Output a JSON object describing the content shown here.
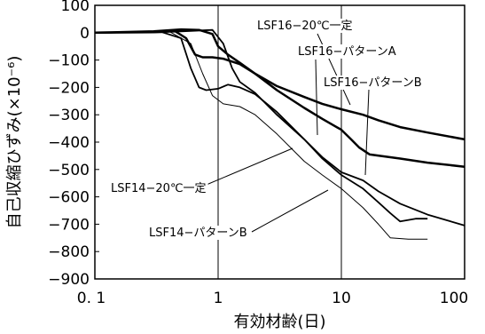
{
  "chart_data": {
    "type": "line",
    "xlabel": "有効材齢(日)",
    "ylabel": "自己収縮ひずみ(×10⁻⁶)",
    "x_scale": "log",
    "xlim": [
      0.1,
      100
    ],
    "ylim": [
      -900,
      100
    ],
    "x_ticks": [
      {
        "value": 0.1,
        "label": "0. 1"
      },
      {
        "value": 1,
        "label": "1"
      },
      {
        "value": 10,
        "label": "10"
      },
      {
        "value": 100,
        "label": "100"
      }
    ],
    "y_ticks": [
      {
        "value": 100,
        "label": "100"
      },
      {
        "value": 0,
        "label": "0"
      },
      {
        "value": -100,
        "label": "−100"
      },
      {
        "value": -200,
        "label": "−200"
      },
      {
        "value": -300,
        "label": "−300"
      },
      {
        "value": -400,
        "label": "−400"
      },
      {
        "value": -500,
        "label": "−500"
      },
      {
        "value": -600,
        "label": "−600"
      },
      {
        "value": -700,
        "label": "−700"
      },
      {
        "value": -800,
        "label": "−800"
      },
      {
        "value": -900,
        "label": "−900"
      }
    ],
    "grid": {
      "x_major": true,
      "y": false
    },
    "series": [
      {
        "name": "LSF16−20℃一定",
        "stroke": 2.5,
        "points": [
          [
            0.1,
            0
          ],
          [
            0.3,
            5
          ],
          [
            0.5,
            12
          ],
          [
            0.7,
            10
          ],
          [
            0.9,
            -5
          ],
          [
            1.0,
            -50
          ],
          [
            1.2,
            -80
          ],
          [
            1.5,
            -110
          ],
          [
            2,
            -150
          ],
          [
            3,
            -195
          ],
          [
            5,
            -235
          ],
          [
            7,
            -260
          ],
          [
            10,
            -280
          ],
          [
            15,
            -300
          ],
          [
            20,
            -320
          ],
          [
            30,
            -345
          ],
          [
            50,
            -365
          ],
          [
            100,
            -390
          ]
        ]
      },
      {
        "name": "LSF16−パターンA",
        "stroke": 2.5,
        "points": [
          [
            0.1,
            0
          ],
          [
            0.3,
            2
          ],
          [
            0.45,
            5
          ],
          [
            0.55,
            -20
          ],
          [
            0.65,
            -80
          ],
          [
            0.75,
            -90
          ],
          [
            0.9,
            -90
          ],
          [
            1.1,
            -95
          ],
          [
            1.5,
            -115
          ],
          [
            2,
            -150
          ],
          [
            3,
            -210
          ],
          [
            5,
            -275
          ],
          [
            7,
            -315
          ],
          [
            10,
            -355
          ],
          [
            12,
            -390
          ],
          [
            14,
            -420
          ],
          [
            17,
            -445
          ],
          [
            30,
            -460
          ],
          [
            50,
            -475
          ],
          [
            100,
            -490
          ]
        ]
      },
      {
        "name": "LSF16−パターンB",
        "stroke": 1.8,
        "points": [
          [
            0.1,
            0
          ],
          [
            0.35,
            2
          ],
          [
            0.5,
            -20
          ],
          [
            0.6,
            -130
          ],
          [
            0.7,
            -200
          ],
          [
            0.8,
            -210
          ],
          [
            1.0,
            -205
          ],
          [
            1.2,
            -190
          ],
          [
            1.5,
            -200
          ],
          [
            2,
            -225
          ],
          [
            3,
            -290
          ],
          [
            5,
            -390
          ],
          [
            7,
            -455
          ],
          [
            10,
            -510
          ],
          [
            15,
            -540
          ],
          [
            20,
            -580
          ],
          [
            30,
            -625
          ],
          [
            50,
            -665
          ],
          [
            100,
            -705
          ]
        ]
      },
      {
        "name": "LSF14−20℃一定",
        "stroke": 1.8,
        "points": [
          [
            0.1,
            0
          ],
          [
            0.5,
            5
          ],
          [
            0.9,
            10
          ],
          [
            1.1,
            -40
          ],
          [
            1.3,
            -130
          ],
          [
            1.5,
            -180
          ],
          [
            2,
            -220
          ],
          [
            3,
            -300
          ],
          [
            5,
            -390
          ],
          [
            7,
            -460
          ],
          [
            10,
            -520
          ],
          [
            15,
            -570
          ],
          [
            20,
            -620
          ],
          [
            25,
            -660
          ],
          [
            30,
            -690
          ],
          [
            40,
            -680
          ],
          [
            50,
            -680
          ]
        ]
      },
      {
        "name": "LSF14−パターンB",
        "stroke": 1.0,
        "points": [
          [
            0.1,
            0
          ],
          [
            0.4,
            5
          ],
          [
            0.6,
            -40
          ],
          [
            0.75,
            -150
          ],
          [
            0.9,
            -230
          ],
          [
            1.1,
            -260
          ],
          [
            1.5,
            -270
          ],
          [
            2,
            -300
          ],
          [
            3,
            -370
          ],
          [
            5,
            -470
          ],
          [
            7,
            -520
          ],
          [
            10,
            -570
          ],
          [
            15,
            -640
          ],
          [
            20,
            -700
          ],
          [
            25,
            -750
          ],
          [
            35,
            -755
          ],
          [
            50,
            -755
          ]
        ]
      }
    ],
    "annotations": [
      {
        "text": "LSF16−20℃一定",
        "series": 0
      },
      {
        "text": "LSF16−パターンA",
        "series": 1
      },
      {
        "text": "LSF16−パターンB",
        "series": 2
      },
      {
        "text": "LSF14−20℃一定",
        "series": 3
      },
      {
        "text": "LSF14−パターンB",
        "series": 4
      }
    ]
  }
}
